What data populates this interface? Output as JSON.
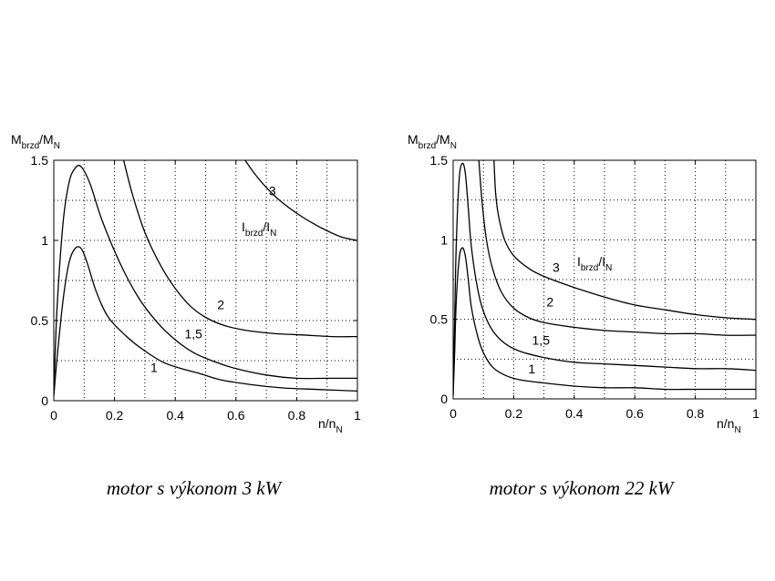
{
  "chart_data": [
    {
      "type": "line",
      "caption": "motor s výkonom 3 kW",
      "ylabel": {
        "main": "M",
        "sub": "brzd",
        "mid": "/M",
        "sub2": "N"
      },
      "xlabel": {
        "main": "n/n",
        "sub": "N"
      },
      "param_label": {
        "main": "I",
        "sub": "brzd",
        "mid": "/I",
        "sub2": "N"
      },
      "xlim": [
        0,
        1
      ],
      "ylim": [
        0,
        1.5
      ],
      "xticks": [
        0,
        0.2,
        0.4,
        0.6,
        0.8,
        1
      ],
      "xtick_labels": [
        "0",
        "0.2",
        "0.4",
        "0.6",
        "0.8",
        "1"
      ],
      "yticks": [
        0,
        0.5,
        1,
        1.5
      ],
      "ytick_labels": [
        "0",
        "0.5",
        "1",
        "1.5"
      ],
      "grid": true,
      "series": [
        {
          "name": "1",
          "x": [
            0,
            0.01,
            0.03,
            0.05,
            0.07,
            0.09,
            0.11,
            0.14,
            0.18,
            0.24,
            0.3,
            0.36,
            0.42,
            0.48,
            0.55,
            0.65,
            0.75,
            0.87,
            1.0
          ],
          "y": [
            0.03,
            0.25,
            0.62,
            0.86,
            0.95,
            0.95,
            0.86,
            0.68,
            0.52,
            0.4,
            0.31,
            0.24,
            0.2,
            0.17,
            0.13,
            0.1,
            0.08,
            0.07,
            0.06
          ]
        },
        {
          "name": "1,5",
          "x": [
            0,
            0.01,
            0.03,
            0.05,
            0.07,
            0.09,
            0.12,
            0.16,
            0.22,
            0.28,
            0.34,
            0.4,
            0.46,
            0.52,
            0.6,
            0.7,
            0.8,
            0.9,
            1.0
          ],
          "y": [
            0.04,
            0.55,
            1.1,
            1.36,
            1.45,
            1.46,
            1.35,
            1.12,
            0.85,
            0.64,
            0.49,
            0.38,
            0.3,
            0.25,
            0.2,
            0.16,
            0.14,
            0.14,
            0.14
          ]
        },
        {
          "name": "2",
          "x": [
            0.23,
            0.26,
            0.3,
            0.35,
            0.4,
            0.45,
            0.5,
            0.56,
            0.63,
            0.72,
            0.82,
            0.92,
            1.0
          ],
          "y": [
            1.5,
            1.28,
            1.05,
            0.85,
            0.7,
            0.59,
            0.52,
            0.47,
            0.44,
            0.42,
            0.41,
            0.4,
            0.4
          ]
        },
        {
          "name": "3",
          "x": [
            0.63,
            0.66,
            0.7,
            0.75,
            0.8,
            0.85,
            0.9,
            0.95,
            1.0
          ],
          "y": [
            1.5,
            1.42,
            1.33,
            1.24,
            1.17,
            1.11,
            1.06,
            1.02,
            1.0
          ]
        }
      ]
    },
    {
      "type": "line",
      "caption": "motor s výkonom 22 kW",
      "ylabel": {
        "main": "M",
        "sub": "brzd",
        "mid": "/M",
        "sub2": "N"
      },
      "xlabel": {
        "main": "n/n",
        "sub": "N"
      },
      "param_label": {
        "main": "I",
        "sub": "brzd",
        "mid": "/I",
        "sub2": "N"
      },
      "xlim": [
        0,
        1
      ],
      "ylim": [
        0,
        1.5
      ],
      "xticks": [
        0,
        0.2,
        0.4,
        0.6,
        0.8,
        1
      ],
      "xtick_labels": [
        "0",
        "0.2",
        "0.4",
        "0.6",
        "0.8",
        "1"
      ],
      "yticks": [
        0,
        0.5,
        1,
        1.5
      ],
      "ytick_labels": [
        "0",
        "0.5",
        "1",
        "1.5"
      ],
      "grid": true,
      "series": [
        {
          "name": "1",
          "x": [
            0,
            0.005,
            0.01,
            0.02,
            0.03,
            0.04,
            0.05,
            0.06,
            0.08,
            0.1,
            0.13,
            0.17,
            0.22,
            0.3,
            0.4,
            0.5,
            0.6,
            0.7,
            0.8,
            0.9,
            1.0
          ],
          "y": [
            0.02,
            0.3,
            0.6,
            0.88,
            0.95,
            0.9,
            0.75,
            0.58,
            0.4,
            0.29,
            0.2,
            0.15,
            0.12,
            0.1,
            0.08,
            0.07,
            0.07,
            0.06,
            0.06,
            0.06,
            0.06
          ]
        },
        {
          "name": "1,5",
          "x": [
            0,
            0.005,
            0.01,
            0.02,
            0.03,
            0.04,
            0.05,
            0.06,
            0.08,
            0.1,
            0.13,
            0.17,
            0.22,
            0.3,
            0.4,
            0.5,
            0.6,
            0.7,
            0.8,
            0.9,
            1.0
          ],
          "y": [
            0.02,
            0.5,
            0.95,
            1.38,
            1.48,
            1.42,
            1.2,
            0.96,
            0.7,
            0.55,
            0.43,
            0.35,
            0.3,
            0.26,
            0.23,
            0.22,
            0.21,
            0.2,
            0.19,
            0.19,
            0.18
          ]
        },
        {
          "name": "2",
          "x": [
            0.085,
            0.095,
            0.11,
            0.13,
            0.16,
            0.2,
            0.25,
            0.3,
            0.4,
            0.5,
            0.6,
            0.7,
            0.8,
            0.9,
            1.0
          ],
          "y": [
            1.5,
            1.25,
            1.0,
            0.82,
            0.67,
            0.57,
            0.51,
            0.48,
            0.45,
            0.43,
            0.42,
            0.41,
            0.41,
            0.4,
            0.4
          ]
        },
        {
          "name": "3",
          "x": [
            0.135,
            0.14,
            0.15,
            0.17,
            0.2,
            0.25,
            0.3,
            0.4,
            0.5,
            0.6,
            0.7,
            0.8,
            0.9,
            1.0
          ],
          "y": [
            1.5,
            1.3,
            1.15,
            1.0,
            0.9,
            0.82,
            0.77,
            0.7,
            0.64,
            0.59,
            0.56,
            0.53,
            0.51,
            0.5
          ]
        }
      ]
    }
  ]
}
